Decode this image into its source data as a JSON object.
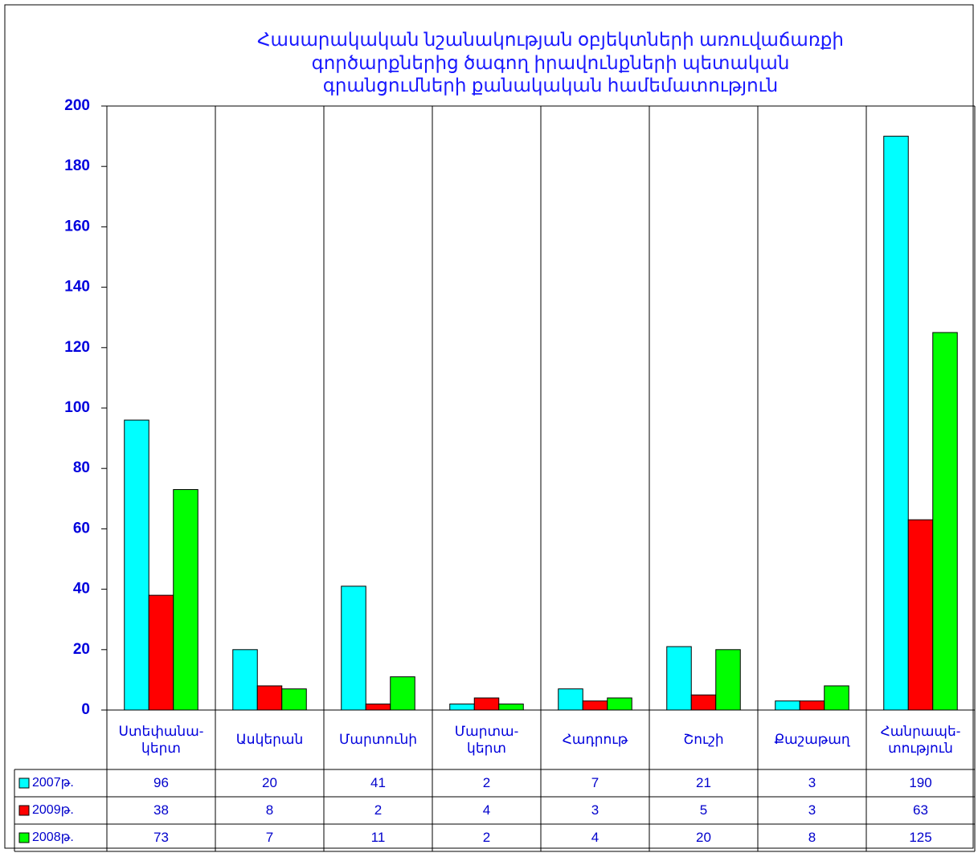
{
  "chart_data": {
    "type": "bar",
    "title": "Հասարակական նշանակության օբյեկտների առուվաճառքի\nգործարքներից ծագող իրավունքների պետական\nգրանցումների քանակական համեմատություն",
    "categories": [
      "Ստեփանա-\nկերտ",
      "Ասկերան",
      "Մարտունի",
      "Մարտա-\nկերտ",
      "Հադրութ",
      "Շուշի",
      "Քաշաթաղ",
      "Հանրապե-\nտություն"
    ],
    "series": [
      {
        "name": "2007թ.",
        "color": "#00ffff",
        "values": [
          96,
          20,
          41,
          2,
          7,
          21,
          3,
          190
        ]
      },
      {
        "name": "2009թ.",
        "color": "#ff0000",
        "values": [
          38,
          8,
          2,
          4,
          3,
          5,
          3,
          63
        ]
      },
      {
        "name": "2008թ.",
        "color": "#00ff00",
        "values": [
          73,
          7,
          11,
          2,
          4,
          20,
          8,
          125
        ]
      }
    ],
    "ylim": [
      0,
      200
    ],
    "yticks": [
      0,
      20,
      40,
      60,
      80,
      100,
      120,
      140,
      160,
      180,
      200
    ]
  }
}
